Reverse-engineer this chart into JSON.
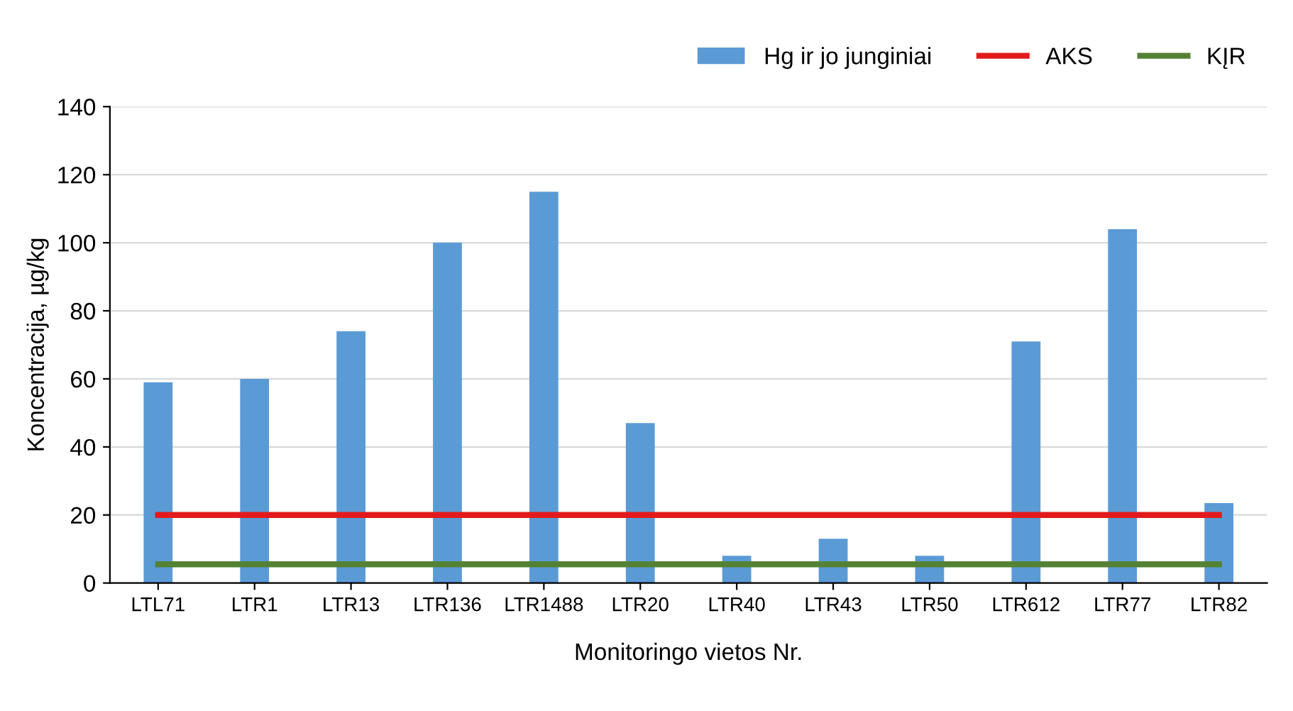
{
  "chart_data": {
    "type": "bar",
    "xlabel": "Monitoringo vietos Nr.",
    "ylabel": "Koncentracija, µg/kg",
    "categories": [
      "LTL71",
      "LTR1",
      "LTR13",
      "LTR136",
      "LTR1488",
      "LTR20",
      "LTR40",
      "LTR43",
      "LTR50",
      "LTR612",
      "LTR77",
      "LTR82"
    ],
    "series": [
      {
        "name": "Hg ir jo junginiai",
        "color": "#5b9bd5",
        "values": [
          59,
          60,
          74,
          100,
          115,
          47,
          8,
          13,
          8,
          71,
          104,
          23.5
        ]
      },
      {
        "name": "AKS",
        "color": "#e31a1c",
        "type": "line",
        "values": [
          20,
          20,
          20,
          20,
          20,
          20,
          20,
          20,
          20,
          20,
          20,
          20
        ]
      },
      {
        "name": "KĮR",
        "color": "#548235",
        "type": "line",
        "values": [
          5.5,
          5.5,
          5.5,
          5.5,
          5.5,
          5.5,
          5.5,
          5.5,
          5.5,
          5.5,
          5.5,
          5.5
        ]
      }
    ],
    "ylim": [
      0,
      140
    ],
    "yticks": [
      0,
      20,
      40,
      60,
      80,
      100,
      120,
      140
    ],
    "grid": "y",
    "legend": "top right"
  }
}
